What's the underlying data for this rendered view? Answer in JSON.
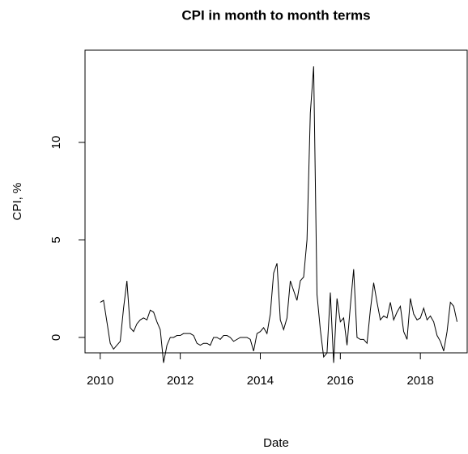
{
  "chart_data": {
    "type": "line",
    "title": "CPI in month to month terms",
    "x_label": "Date",
    "y_label": "CPI, %",
    "x": [
      2010,
      2010.083,
      2010.167,
      2010.25,
      2010.333,
      2010.417,
      2010.5,
      2010.583,
      2010.667,
      2010.75,
      2010.833,
      2010.917,
      2011,
      2011.083,
      2011.167,
      2011.25,
      2011.333,
      2011.417,
      2011.5,
      2011.583,
      2011.667,
      2011.75,
      2011.833,
      2011.917,
      2012,
      2012.083,
      2012.167,
      2012.25,
      2012.333,
      2012.417,
      2012.5,
      2012.583,
      2012.667,
      2012.75,
      2012.833,
      2012.917,
      2013,
      2013.083,
      2013.167,
      2013.25,
      2013.333,
      2013.417,
      2013.5,
      2013.583,
      2013.667,
      2013.75,
      2013.833,
      2013.917,
      2014,
      2014.083,
      2014.167,
      2014.25,
      2014.333,
      2014.417,
      2014.5,
      2014.583,
      2014.667,
      2014.75,
      2014.833,
      2014.917,
      2015,
      2015.083,
      2015.167,
      2015.25,
      2015.333,
      2015.417,
      2015.5,
      2015.583,
      2015.667,
      2015.75,
      2015.833,
      2015.917,
      2016,
      2016.083,
      2016.167,
      2016.25,
      2016.333,
      2016.417,
      2016.5,
      2016.583,
      2016.667,
      2016.75,
      2016.833,
      2016.917,
      2017,
      2017.083,
      2017.167,
      2017.25,
      2017.333,
      2017.417,
      2017.5,
      2017.583,
      2017.667,
      2017.75,
      2017.833,
      2017.917,
      2018,
      2018.083,
      2018.167,
      2018.25,
      2018.333,
      2018.417,
      2018.5,
      2018.583,
      2018.667,
      2018.75,
      2018.833,
      2018.917
    ],
    "series": [
      {
        "color": "#000000",
        "values": [
          1.8,
          1.9,
          0.8,
          -0.3,
          -0.6,
          -0.4,
          -0.2,
          1.5,
          2.9,
          0.5,
          0.3,
          0.7,
          0.9,
          1.0,
          0.9,
          1.4,
          1.3,
          0.8,
          0.4,
          -1.3,
          -0.4,
          0.0,
          0.0,
          0.1,
          0.1,
          0.2,
          0.2,
          0.2,
          0.1,
          -0.3,
          -0.4,
          -0.3,
          -0.3,
          -0.4,
          0.0,
          0.0,
          -0.1,
          0.1,
          0.1,
          0.0,
          -0.2,
          -0.1,
          0.0,
          0.0,
          0.0,
          -0.1,
          -0.7,
          0.2,
          0.3,
          0.5,
          0.2,
          1.2,
          3.3,
          3.8,
          0.9,
          0.4,
          1.0,
          2.9,
          2.4,
          1.9,
          2.9,
          3.1,
          5.0,
          11.5,
          13.9,
          2.2,
          0.4,
          -1.0,
          -0.8,
          2.3,
          -1.3,
          2.0,
          0.8,
          1.0,
          -0.4,
          1.6,
          3.5,
          0.0,
          -0.1,
          -0.1,
          -0.3,
          1.4,
          2.8,
          1.8,
          0.9,
          1.1,
          1.0,
          1.8,
          0.9,
          1.3,
          1.6,
          0.3,
          -0.1,
          2.0,
          1.2,
          0.9,
          1.0,
          1.5,
          0.9,
          1.1,
          0.8,
          0.1,
          -0.2,
          -0.7,
          0.3,
          1.8,
          1.6,
          0.8
        ]
      }
    ],
    "xlim": [
      2009.62,
      2019.17
    ],
    "ylim": [
      -0.79,
      14.73
    ],
    "xticks": [
      2010,
      2012,
      2014,
      2016,
      2018
    ],
    "yticks": [
      0,
      5,
      10
    ]
  }
}
